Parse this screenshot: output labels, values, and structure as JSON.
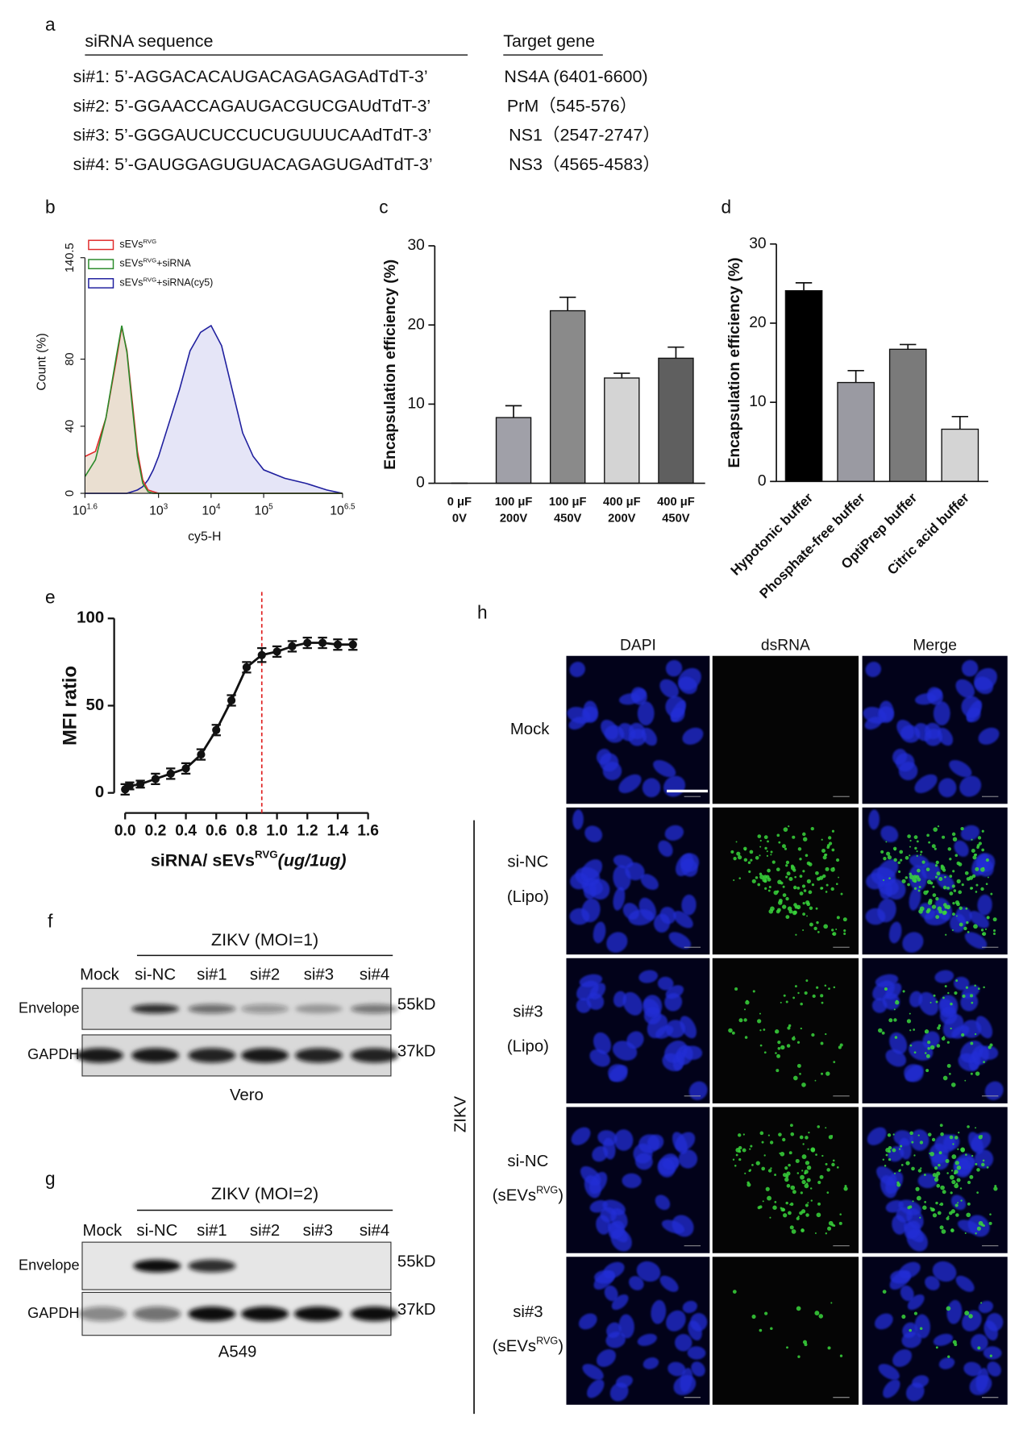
{
  "panel_labels": [
    "a",
    "b",
    "c",
    "d",
    "e",
    "f",
    "g",
    "h"
  ],
  "sequence_table": {
    "headers": [
      "siRNA sequence",
      "Target gene"
    ],
    "rows": [
      [
        "si#1: 5’-AGGACACAUGACAGAGAGAdTdT-3’",
        "NS4A (6401-6600)"
      ],
      [
        "si#2: 5’-GGAACCAGAUGACGUCGAUdTdT-3’",
        "PrM（545-576）"
      ],
      [
        "si#3: 5’-GGGAUCUCCUCUGUUUCAAdTdT-3’",
        "NS1（2547-2747）"
      ],
      [
        "si#4: 5’-GAUGGAGUGUACAGAGUGAdTdT-3’",
        "NS3（4565-4583）"
      ]
    ]
  },
  "chart_data": [
    {
      "type": "area",
      "x_log": true,
      "xlabel": "cy5-H",
      "ylabel": "Count (%)",
      "xlim": [
        39.81,
        3162278
      ],
      "ylim": [
        0,
        140.5
      ],
      "xticks": [
        {
          "value": 39.81,
          "label": [
            "10",
            {
              "sup": "1.6"
            }
          ]
        },
        {
          "value": 1000,
          "label": [
            "10",
            {
              "sup": "3"
            }
          ]
        },
        {
          "value": 10000,
          "label": [
            "10",
            {
              "sup": "4"
            }
          ]
        },
        {
          "value": 100000,
          "label": [
            "10",
            {
              "sup": "5"
            }
          ]
        },
        {
          "value": 3162278,
          "label": [
            "10",
            {
              "sup": "6.5"
            }
          ]
        }
      ],
      "yticks": [
        0,
        40,
        80,
        140.5
      ],
      "x": [
        40,
        63,
        100,
        158,
        200,
        251,
        316,
        398,
        501,
        631,
        794,
        1000,
        1585,
        2512,
        3981,
        6310,
        10000,
        15849,
        25119,
        39811,
        63096,
        100000,
        251189,
        630957,
        1584893,
        3162278
      ],
      "series": [
        {
          "name": [
            "sEVs",
            {
              "sup": "RVG"
            },
            "+siRNA(cy5)"
          ],
          "color": "#1f1f9e",
          "fill": "#dcdcf4",
          "values": [
            0,
            0,
            0,
            0,
            0,
            0,
            1,
            2,
            4,
            8,
            14,
            22,
            42,
            62,
            85,
            96,
            100,
            88,
            62,
            36,
            22,
            14,
            9,
            6,
            2,
            0
          ]
        },
        {
          "name": [
            "sEVs",
            {
              "sup": "RVG"
            }
          ],
          "color": "#e02a2a",
          "fill": "#e8dccd",
          "values": [
            22,
            25,
            45,
            80,
            99,
            85,
            55,
            25,
            8,
            2,
            1,
            0,
            0,
            0,
            0,
            0,
            0,
            0,
            0,
            0,
            0,
            0,
            0,
            0,
            0,
            0
          ]
        },
        {
          "name": [
            "sEVs",
            {
              "sup": "RVG"
            },
            "+siRNA"
          ],
          "color": "#2a8a2a",
          "fill": "#e8dccd",
          "values": [
            10,
            20,
            45,
            82,
            100,
            84,
            52,
            22,
            6,
            1,
            0,
            0,
            0,
            0,
            0,
            0,
            0,
            0,
            0,
            0,
            0,
            0,
            0,
            0,
            0,
            0
          ]
        }
      ],
      "legend_order": [
        1,
        2,
        0
      ]
    },
    {
      "type": "bar",
      "ylabel": "Encapsulation efficiency (%)",
      "categories": [
        [
          "0 μF",
          "0V"
        ],
        [
          "100 μF",
          "200V"
        ],
        [
          "100 μF",
          "450V"
        ],
        [
          "400 μF",
          "200V"
        ],
        [
          "400 μF",
          "450V"
        ]
      ],
      "values": [
        0,
        8.3,
        21.8,
        13.3,
        15.8
      ],
      "errors": [
        0,
        1.5,
        1.7,
        0.6,
        1.4
      ],
      "colors": [
        "#a0a0a8",
        "#a0a0a8",
        "#8a8a8a",
        "#d4d4d4",
        "#5f5f5f"
      ],
      "ylim": [
        0,
        30
      ],
      "yticks": [
        0,
        10,
        20,
        30
      ]
    },
    {
      "type": "bar",
      "ylabel": "Encapsulation efficiency (%)",
      "categories": [
        "Hypotonic buffer",
        "Phosphate-free buffer",
        "OptiPrep buffer",
        "Citric acid buffer"
      ],
      "values": [
        24.1,
        12.5,
        16.7,
        6.6
      ],
      "errors": [
        1.0,
        1.5,
        0.6,
        1.6
      ],
      "colors": [
        "#000000",
        "#9a9aa2",
        "#7a7a7a",
        "#d4d4d4"
      ],
      "ylim": [
        0,
        30
      ],
      "yticks": [
        0,
        10,
        20,
        30
      ]
    },
    {
      "type": "line",
      "ylabel": "MFI ratio",
      "xlabel": [
        "siRNA/ sEVs",
        {
          "sup": "RVG"
        },
        {
          "italic": "(ug/1ug)"
        }
      ],
      "x": [
        0,
        0.03,
        0.1,
        0.2,
        0.3,
        0.4,
        0.5,
        0.6,
        0.7,
        0.8,
        0.9,
        1.0,
        1.1,
        1.2,
        1.3,
        1.4,
        1.5
      ],
      "values": [
        2,
        4,
        5,
        8,
        11,
        14,
        22,
        36,
        53,
        72,
        79,
        81,
        84,
        86,
        86,
        85,
        85
      ],
      "errors": [
        3,
        2,
        2,
        3,
        3,
        3,
        3,
        3,
        3,
        3,
        4,
        3,
        3,
        3,
        3,
        3,
        3
      ],
      "color": "#111111",
      "xlim": [
        0,
        1.6
      ],
      "ylim": [
        0,
        100
      ],
      "xticks": [
        {
          "value": 0,
          "label": "0.0"
        },
        0.2,
        0.4,
        0.6,
        0.8,
        {
          "value": 1,
          "label": "1.0"
        },
        1.2,
        1.4,
        1.6
      ],
      "yticks": [
        0,
        50,
        100
      ],
      "reference_line": {
        "x": 0.9,
        "color": "#e02020"
      }
    }
  ],
  "blots": [
    {
      "title": "ZIKV (MOI=1)",
      "lanes": [
        "Mock",
        "si-NC",
        "si#1",
        "si#2",
        "si#3",
        "si#4"
      ],
      "rows": [
        "Envelope",
        "GAPDH"
      ],
      "sizes": [
        "55kD",
        "37kD"
      ],
      "cell_line": "Vero"
    },
    {
      "title": "ZIKV (MOI=2)",
      "lanes": [
        "Mock",
        "si-NC",
        "si#1",
        "si#2",
        "si#3",
        "si#4"
      ],
      "rows": [
        "Envelope",
        "GAPDH"
      ],
      "sizes": [
        "55kD",
        "37kD"
      ],
      "cell_line": "A549"
    }
  ],
  "microscopy": {
    "columns": [
      "DAPI",
      "dsRNA",
      "Merge"
    ],
    "rows": [
      [
        "Mock"
      ],
      [
        "si-NC",
        "(Lipo)"
      ],
      [
        "si#3",
        "(Lipo)"
      ],
      [
        "si-NC",
        [
          "(sEVs",
          {
            "sup": "RVG"
          },
          ")"
        ]
      ],
      [
        "si#3",
        [
          "(sEVs",
          {
            "sup": "RVG"
          },
          ")"
        ]
      ]
    ],
    "group_label": "ZIKV"
  }
}
